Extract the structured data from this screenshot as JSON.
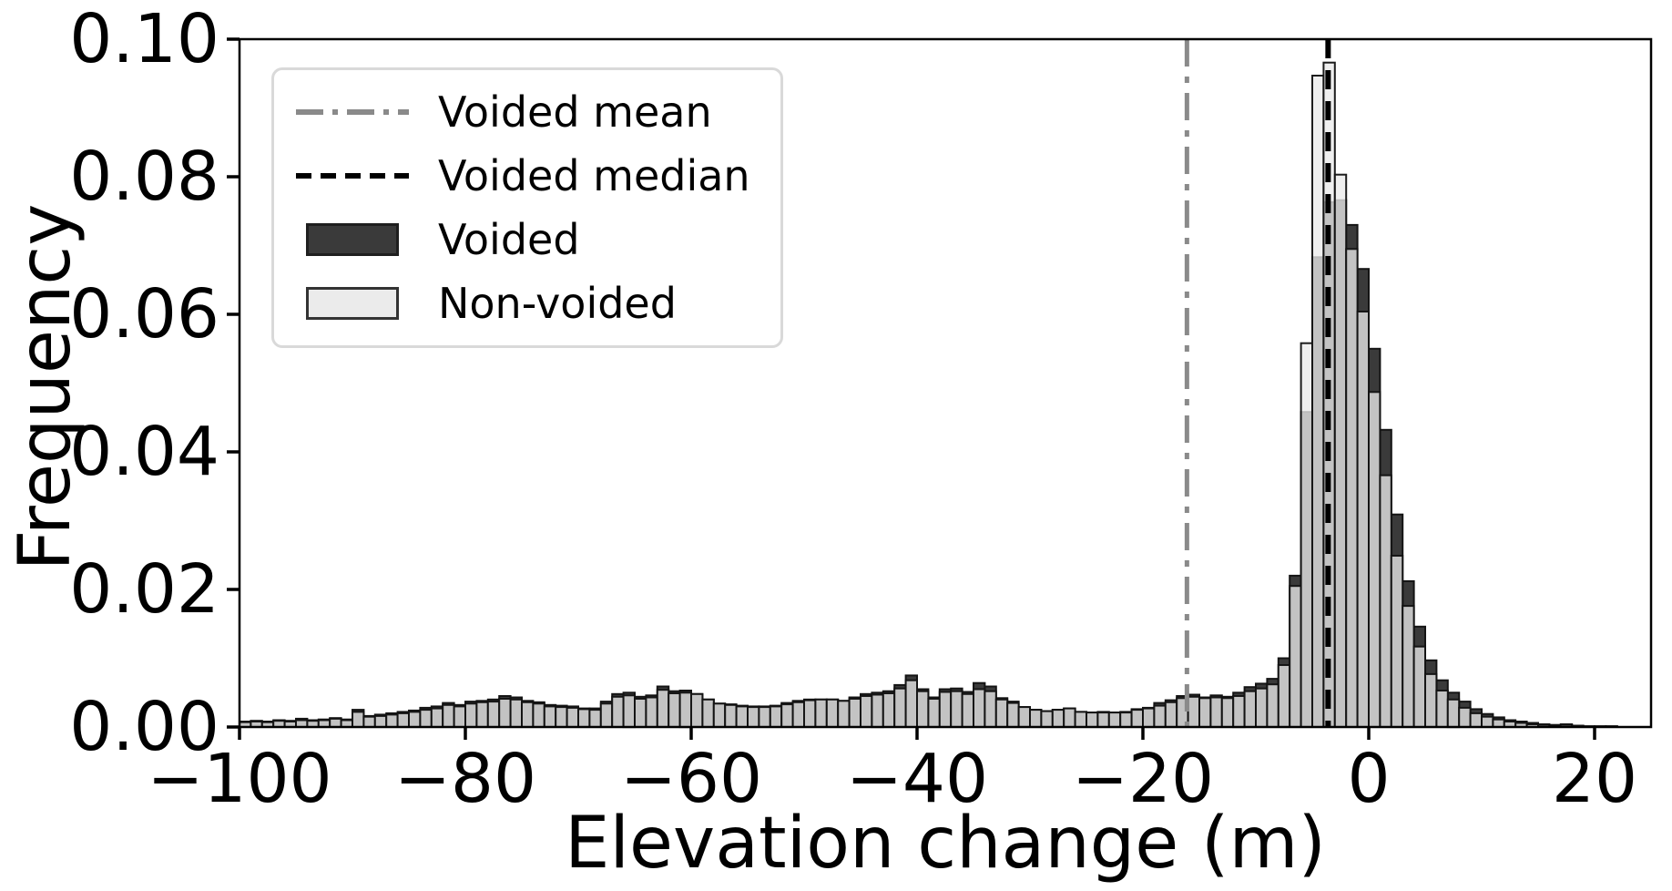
{
  "page": {
    "background": "#ffffff"
  },
  "axes": {
    "xlabel": "Elevation change (m)",
    "ylabel": "Frequency",
    "xlim": [
      -100,
      25
    ],
    "ylim": [
      0,
      0.1
    ],
    "xticks": [
      {
        "value": -100,
        "label": "−100"
      },
      {
        "value": -80,
        "label": "−80"
      },
      {
        "value": -60,
        "label": "−60"
      },
      {
        "value": -40,
        "label": "−40"
      },
      {
        "value": -20,
        "label": "−20"
      },
      {
        "value": 0,
        "label": "0"
      },
      {
        "value": 20,
        "label": "20"
      }
    ],
    "yticks": [
      {
        "value": 0.0,
        "label": "0.00"
      },
      {
        "value": 0.02,
        "label": "0.02"
      },
      {
        "value": 0.04,
        "label": "0.04"
      },
      {
        "value": 0.06,
        "label": "0.06"
      },
      {
        "value": 0.08,
        "label": "0.08"
      },
      {
        "value": 0.1,
        "label": "0.10"
      }
    ]
  },
  "legend": {
    "position": "upper left",
    "items": [
      {
        "label": "Voided mean",
        "sample": "dashdot-line",
        "color": "#8a8a8a"
      },
      {
        "label": "Voided median",
        "sample": "dashed-line",
        "color": "#000000"
      },
      {
        "label": "Voided",
        "sample": "patch",
        "color": "#3a3a3a"
      },
      {
        "label": "Non-voided",
        "sample": "patch",
        "color": "#ebebeb"
      }
    ]
  },
  "chart_data": {
    "type": "bar",
    "subtype": "overlaid-histogram",
    "title": "",
    "xlabel": "Elevation change (m)",
    "ylabel": "Frequency",
    "xlim": [
      -100,
      25
    ],
    "ylim": [
      0,
      0.1
    ],
    "grid": false,
    "legend_position": "upper left",
    "bin_start": -100,
    "bin_width": 1,
    "series": [
      {
        "name": "Voided",
        "color": "#3a3a3a",
        "edge_color": "#141414",
        "fill_opacity": 1.0,
        "values": [
          0.0008,
          0.0009,
          0.0008,
          0.001,
          0.0009,
          0.0012,
          0.001,
          0.0011,
          0.0013,
          0.0011,
          0.0025,
          0.0016,
          0.0018,
          0.002,
          0.0022,
          0.0024,
          0.0028,
          0.003,
          0.0035,
          0.0032,
          0.0037,
          0.0038,
          0.004,
          0.0045,
          0.0043,
          0.0038,
          0.0036,
          0.0032,
          0.0031,
          0.003,
          0.0027,
          0.0027,
          0.0037,
          0.0048,
          0.005,
          0.0044,
          0.0046,
          0.0059,
          0.0052,
          0.0053,
          0.0048,
          0.004,
          0.0034,
          0.0033,
          0.0031,
          0.003,
          0.003,
          0.0031,
          0.0035,
          0.0038,
          0.004,
          0.004,
          0.004,
          0.0038,
          0.0043,
          0.0048,
          0.005,
          0.0052,
          0.0061,
          0.0075,
          0.0055,
          0.0043,
          0.0055,
          0.0056,
          0.0051,
          0.0064,
          0.0059,
          0.0042,
          0.0037,
          0.0029,
          0.0025,
          0.0023,
          0.0025,
          0.0027,
          0.0022,
          0.0021,
          0.0022,
          0.0021,
          0.0022,
          0.0026,
          0.0028,
          0.0035,
          0.0039,
          0.0045,
          0.0047,
          0.0043,
          0.0046,
          0.0044,
          0.005,
          0.0058,
          0.0063,
          0.007,
          0.01,
          0.022,
          0.0458,
          0.0683,
          0.0763,
          0.0766,
          0.073,
          0.0666,
          0.055,
          0.0432,
          0.0309,
          0.0212,
          0.0146,
          0.0097,
          0.0068,
          0.005,
          0.0037,
          0.0026,
          0.0019,
          0.0014,
          0.001,
          0.0008,
          0.0006,
          0.0004,
          0.0003,
          0.0004,
          0.0002,
          0.0001,
          0.0001,
          0.0001,
          0.0,
          0.0,
          0.0
        ]
      },
      {
        "name": "Non-voided",
        "color": "#ebebeb",
        "edge_color": "#111111",
        "fill_opacity": 0.78,
        "values": [
          0.0007,
          0.0008,
          0.0007,
          0.0009,
          0.0008,
          0.001,
          0.0009,
          0.001,
          0.0012,
          0.001,
          0.0022,
          0.0015,
          0.0016,
          0.0018,
          0.002,
          0.0022,
          0.0025,
          0.0027,
          0.0032,
          0.003,
          0.0034,
          0.0036,
          0.0037,
          0.0041,
          0.004,
          0.0036,
          0.0034,
          0.003,
          0.0029,
          0.0028,
          0.0026,
          0.0025,
          0.0034,
          0.0044,
          0.0046,
          0.0041,
          0.0043,
          0.0054,
          0.0049,
          0.005,
          0.0048,
          0.004,
          0.0034,
          0.0032,
          0.003,
          0.0029,
          0.0029,
          0.003,
          0.0033,
          0.0036,
          0.0039,
          0.004,
          0.004,
          0.0038,
          0.0041,
          0.0045,
          0.0047,
          0.0049,
          0.0056,
          0.0068,
          0.0052,
          0.0041,
          0.0051,
          0.0052,
          0.0048,
          0.0055,
          0.0052,
          0.004,
          0.0035,
          0.0029,
          0.0025,
          0.0023,
          0.0025,
          0.0027,
          0.0022,
          0.0021,
          0.0021,
          0.0021,
          0.0021,
          0.0025,
          0.0027,
          0.0031,
          0.0036,
          0.0042,
          0.0044,
          0.0042,
          0.0043,
          0.0042,
          0.0045,
          0.0052,
          0.0056,
          0.0062,
          0.009,
          0.0205,
          0.0558,
          0.0947,
          0.0966,
          0.0803,
          0.0695,
          0.0604,
          0.0487,
          0.0366,
          0.0249,
          0.0176,
          0.0117,
          0.0077,
          0.0053,
          0.004,
          0.0028,
          0.002,
          0.0015,
          0.0011,
          0.0008,
          0.0006,
          0.0004,
          0.0003,
          0.0002,
          0.0003,
          0.0002,
          0.0001,
          0.0001,
          0.0001,
          0.0,
          0.0,
          0.0
        ]
      }
    ],
    "vlines": [
      {
        "name": "Voided mean",
        "x": -16.1,
        "color": "#8a8a8a",
        "style": "dashdot",
        "width": 5
      },
      {
        "name": "Voided median",
        "x": -3.6,
        "color": "#000000",
        "style": "dashed",
        "width": 6
      }
    ]
  }
}
